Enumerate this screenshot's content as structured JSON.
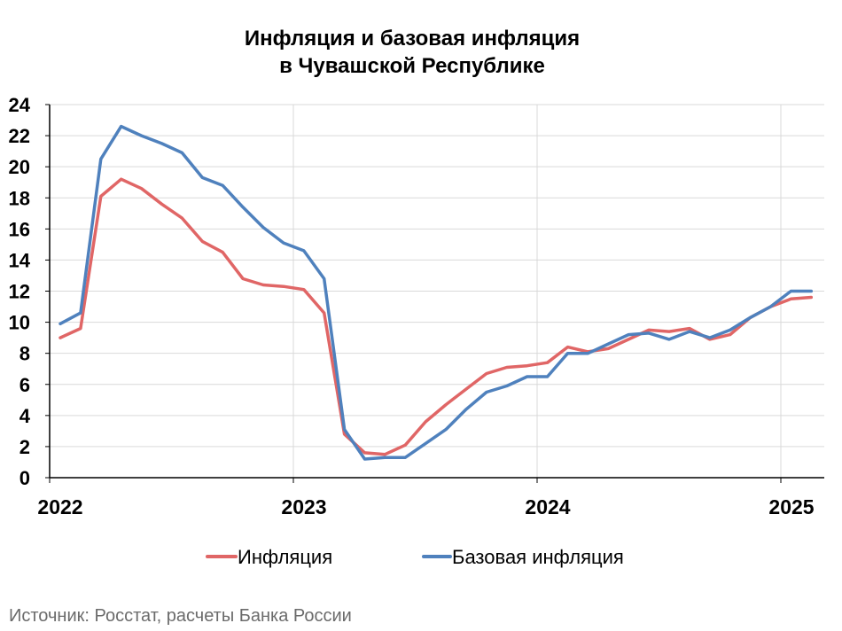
{
  "chart_data": {
    "type": "line",
    "title_line1": "Инфляция и базовая инфляция",
    "title_line2": "в Чувашской Республике",
    "xlabel": "",
    "ylabel": "",
    "ylim": [
      0,
      24
    ],
    "y_ticks": [
      "0",
      "2",
      "4",
      "6",
      "8",
      "10",
      "12",
      "14",
      "16",
      "18",
      "20",
      "22",
      "24"
    ],
    "x_ticks": [
      "2022",
      "2023",
      "2024",
      "2025"
    ],
    "x_start": "2022-01",
    "grid": true,
    "legend_position": "bottom",
    "series": [
      {
        "name": "Инфляция",
        "color": "#e06666",
        "values": [
          9.0,
          9.6,
          18.1,
          19.2,
          18.6,
          17.6,
          16.7,
          15.2,
          14.5,
          12.8,
          12.4,
          12.3,
          12.1,
          10.6,
          2.8,
          1.6,
          1.5,
          2.1,
          3.6,
          4.7,
          5.7,
          6.7,
          7.1,
          7.2,
          7.4,
          8.4,
          8.1,
          8.3,
          8.9,
          9.5,
          9.4,
          9.6,
          8.9,
          9.2,
          10.3,
          11.0,
          11.5,
          11.6
        ],
        "dates": [
          "2022-01",
          "2022-02",
          "2022-03",
          "2022-04",
          "2022-05",
          "2022-06",
          "2022-07",
          "2022-08",
          "2022-09",
          "2022-10",
          "2022-11",
          "2022-12",
          "2023-01",
          "2023-02",
          "2023-03",
          "2023-04",
          "2023-05",
          "2023-06",
          "2023-07",
          "2023-08",
          "2023-09",
          "2023-10",
          "2023-11",
          "2023-12",
          "2024-01",
          "2024-02",
          "2024-03",
          "2024-04",
          "2024-05",
          "2024-06",
          "2024-07",
          "2024-08",
          "2024-09",
          "2024-10",
          "2024-11",
          "2024-12",
          "2025-01",
          "2025-02"
        ]
      },
      {
        "name": "Базовая инфляция",
        "color": "#4f81bd",
        "values": [
          9.9,
          10.6,
          20.5,
          22.6,
          22.0,
          21.5,
          20.9,
          19.3,
          18.8,
          17.4,
          16.1,
          15.1,
          14.6,
          12.8,
          3.1,
          1.2,
          1.3,
          1.3,
          2.2,
          3.1,
          4.4,
          5.5,
          5.9,
          6.5,
          6.5,
          8.0,
          8.0,
          8.6,
          9.2,
          9.3,
          8.9,
          9.4,
          9.0,
          9.5,
          10.3,
          11.0,
          12.0,
          12.0
        ],
        "dates": [
          "2022-01",
          "2022-02",
          "2022-03",
          "2022-04",
          "2022-05",
          "2022-06",
          "2022-07",
          "2022-08",
          "2022-09",
          "2022-10",
          "2022-11",
          "2022-12",
          "2023-01",
          "2023-02",
          "2023-03",
          "2023-04",
          "2023-05",
          "2023-06",
          "2023-07",
          "2023-08",
          "2023-09",
          "2023-10",
          "2023-11",
          "2023-12",
          "2024-01",
          "2024-02",
          "2024-03",
          "2024-04",
          "2024-05",
          "2024-06",
          "2024-07",
          "2024-08",
          "2024-09",
          "2024-10",
          "2024-11",
          "2024-12",
          "2025-01",
          "2025-02"
        ]
      }
    ]
  },
  "source": "Источник: Росстат, расчеты Банка России"
}
